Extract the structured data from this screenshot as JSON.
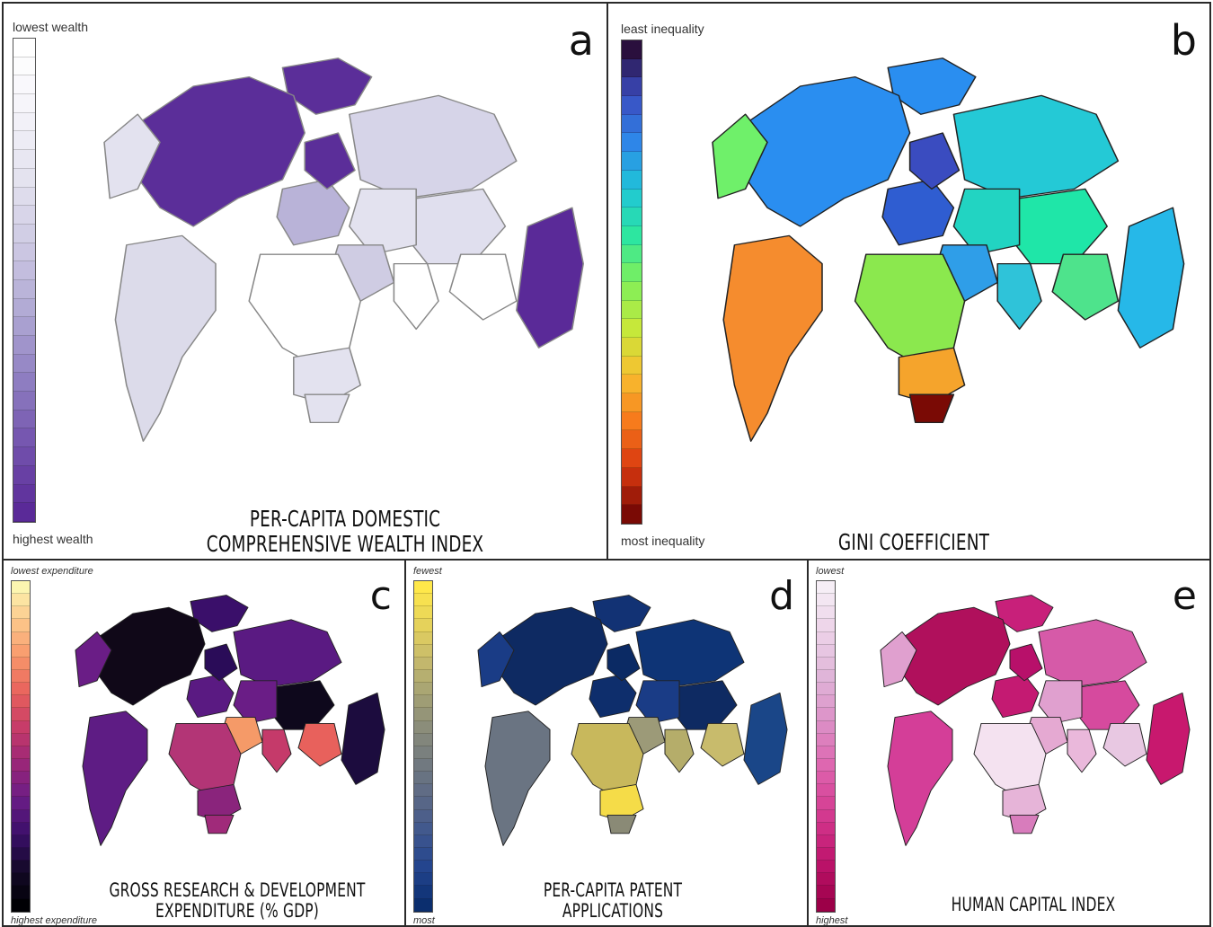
{
  "panels": [
    {
      "id": "a",
      "letter": "a",
      "title_lines": [
        "PER-CAPITA DOMESTIC",
        "COMPREHENSIVE WEALTH INDEX"
      ],
      "legend_top": "lowest wealth",
      "legend_bottom": "highest wealth",
      "ramp": [
        "#ffffff",
        "#f4f3f9",
        "#e3e2ef",
        "#cdc9e3",
        "#b0a8d4",
        "#8f7fc2",
        "#7352ad",
        "#5a2a98"
      ],
      "colors": {
        "north_america": "#5b2e99",
        "greenland": "#5b2e99",
        "south_america": "#dcdbea",
        "europe": "#b9b3d8",
        "scandinavia": "#5b2e99",
        "russia": "#d6d4e8",
        "asia": "#e3e2ef",
        "middle_east": "#cfcce3",
        "africa": "#ffffff",
        "australia": "#5a2a98",
        "india": "#ffffff",
        "se_asia": "#ffffff",
        "china": "#e0dfee"
      }
    },
    {
      "id": "b",
      "letter": "b",
      "title_lines": [
        "GINI COEFFICIENT"
      ],
      "legend_top": "least inequality",
      "legend_bottom": "most inequality",
      "ramp": [
        "#2a0f3d",
        "#3a4cc0",
        "#2e86e8",
        "#1fc6d8",
        "#2de6a0",
        "#7ff05a",
        "#c6e83a",
        "#f8c030",
        "#f77b1c",
        "#d9380f",
        "#7a0a05"
      ],
      "colors": {
        "north_america": "#2a8ef0",
        "greenland": "#2a8ef0",
        "alaska": "#6ff06a",
        "south_america": "#f58c2e",
        "europe": "#2f5dd1",
        "scandinavia": "#3a4cc0",
        "russia": "#24c9d6",
        "asia": "#22d4c2",
        "middle_east": "#2f9ee8",
        "africa": "#8be84e",
        "southern_africa": "#f5a42c",
        "south_africa": "#7a0a05",
        "australia": "#26b8e8",
        "india": "#2fc3d9",
        "se_asia": "#4ee38c",
        "china": "#1fe6a8"
      }
    },
    {
      "id": "c",
      "letter": "c",
      "title_lines": [
        "GROSS RESEARCH & DEVELOPMENT",
        "EXPENDITURE (% GDP)"
      ],
      "legend_top": "lowest expenditure",
      "legend_bottom": "highest expenditure",
      "ramp": [
        "#fcf5b0",
        "#fcc68a",
        "#f8956a",
        "#e8615c",
        "#c63a6a",
        "#9a2678",
        "#6a1d86",
        "#3a0f6a",
        "#150a2a",
        "#000004"
      ],
      "colors": {
        "north_america": "#100818",
        "greenland": "#3a0f6a",
        "south_america": "#5e1c84",
        "europe": "#5a1a82",
        "scandinavia": "#2a0c58",
        "russia": "#5a1a82",
        "asia": "#6a1d86",
        "middle_east": "#f59a68",
        "africa": "#b33576",
        "southern_africa": "#8a247c",
        "south_africa": "#a02a7a",
        "australia": "#1c0c3e",
        "india": "#c53a6a",
        "se_asia": "#e8615c",
        "china": "#0e081c"
      }
    },
    {
      "id": "d",
      "letter": "d",
      "title_lines": [
        "PER-CAPITA PATENT",
        "APPLICATIONS"
      ],
      "legend_top": "fewest",
      "legend_bottom": "most",
      "ramp": [
        "#ffe84a",
        "#e8d45a",
        "#c8bb6c",
        "#a6a374",
        "#8a8c7a",
        "#727a80",
        "#5a6886",
        "#3e568e",
        "#22448e",
        "#0b2e6e"
      ],
      "colors": {
        "north_america": "#0e2a62",
        "greenland": "#123274",
        "south_america": "#6a7482",
        "europe": "#0e2e6c",
        "scandinavia": "#0b2a64",
        "russia": "#0e3476",
        "asia": "#1a3c86",
        "middle_east": "#9c9a78",
        "africa": "#c8b85c",
        "southern_africa": "#f5dc48",
        "south_africa": "#8a8a76",
        "australia": "#1a4688",
        "india": "#b5ad6a",
        "se_asia": "#c8bb6c",
        "china": "#0e2a62"
      }
    },
    {
      "id": "e",
      "letter": "e",
      "title_lines": [
        "HUMAN CAPITAL INDEX"
      ],
      "legend_top": "lowest",
      "legend_bottom": "highest",
      "ramp": [
        "#f6eef6",
        "#ecd2e8",
        "#e0b4d8",
        "#dc8fc6",
        "#de63ae",
        "#d43a90",
        "#c0166e",
        "#9c0048"
      ],
      "colors": {
        "north_america": "#b0105c",
        "greenland": "#c8207a",
        "south_america": "#d43e98",
        "europe": "#c41a72",
        "scandinavia": "#b8106a",
        "russia": "#d65aa8",
        "asia": "#e0a0cf",
        "middle_east": "#e5a9d2",
        "africa": "#f4e2f0",
        "southern_africa": "#e6b4d8",
        "south_africa": "#d87cbc",
        "australia": "#c8186e",
        "india": "#eab8db",
        "se_asia": "#e8c8e2",
        "china": "#d64a9e"
      }
    }
  ]
}
